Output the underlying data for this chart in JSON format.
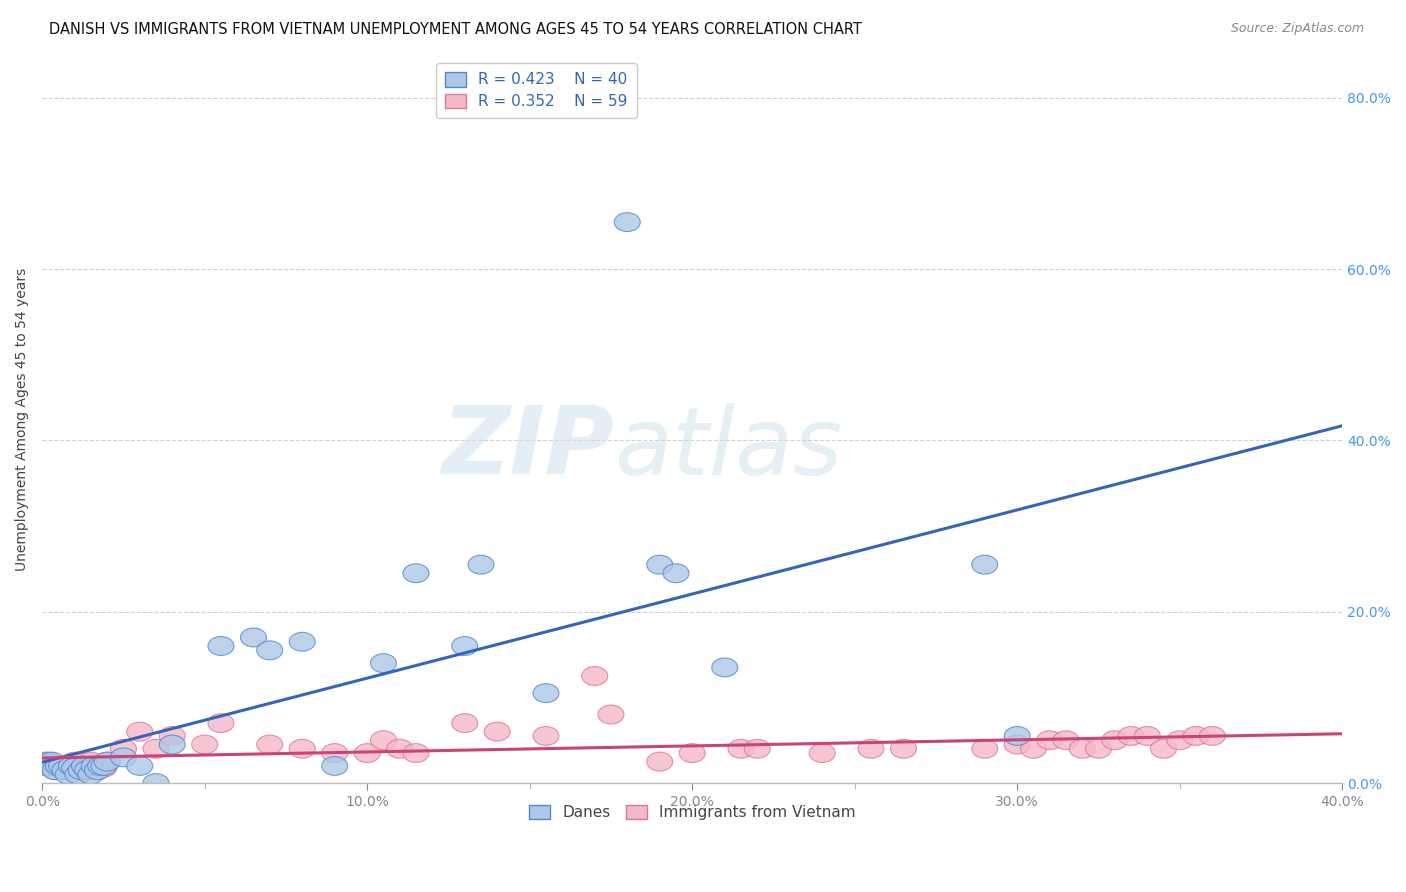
{
  "title": "DANISH VS IMMIGRANTS FROM VIETNAM UNEMPLOYMENT AMONG AGES 45 TO 54 YEARS CORRELATION CHART",
  "source": "Source: ZipAtlas.com",
  "ylabel": "Unemployment Among Ages 45 to 54 years",
  "xlim": [
    0.0,
    0.42
  ],
  "ylim": [
    -0.01,
    0.85
  ],
  "plot_xlim": [
    0.0,
    0.4
  ],
  "plot_ylim": [
    0.0,
    0.85
  ],
  "xtick_positions": [
    0.0,
    0.1,
    0.2,
    0.3,
    0.4
  ],
  "xtick_labels": [
    "0.0%",
    "10.0%",
    "20.0%",
    "30.0%",
    "40.0%"
  ],
  "ytick_positions": [
    0.0,
    0.2,
    0.4,
    0.6,
    0.8
  ],
  "ytick_labels": [
    "0.0%",
    "20.0%",
    "40.0%",
    "60.0%",
    "80.0%"
  ],
  "danes_color": "#adc8e8",
  "danes_edge_color": "#5588cc",
  "danes_line_color": "#3366bb",
  "vietnam_color": "#f5b8c8",
  "vietnam_edge_color": "#dd7799",
  "vietnam_line_color": "#cc4477",
  "danes_R": "0.423",
  "danes_N": "40",
  "vietnam_R": "0.352",
  "vietnam_N": "59",
  "watermark_zip": "ZIP",
  "watermark_atlas": "atlas",
  "background_color": "#ffffff",
  "grid_color": "#cccccc",
  "right_tick_color": "#4499ee",
  "danes_scatter_x": [
    0.001,
    0.002,
    0.003,
    0.004,
    0.005,
    0.006,
    0.007,
    0.008,
    0.009,
    0.01,
    0.011,
    0.012,
    0.013,
    0.014,
    0.015,
    0.016,
    0.017,
    0.018,
    0.019,
    0.02,
    0.025,
    0.03,
    0.035,
    0.04,
    0.055,
    0.065,
    0.07,
    0.08,
    0.09,
    0.105,
    0.115,
    0.13,
    0.135,
    0.155,
    0.18,
    0.19,
    0.195,
    0.21,
    0.29,
    0.3
  ],
  "danes_scatter_y": [
    0.025,
    0.02,
    0.025,
    0.015,
    0.02,
    0.02,
    0.015,
    0.01,
    0.02,
    0.018,
    0.01,
    0.015,
    0.02,
    0.015,
    0.01,
    0.02,
    0.015,
    0.02,
    0.02,
    0.025,
    0.03,
    0.02,
    0.0,
    0.045,
    0.16,
    0.17,
    0.155,
    0.165,
    0.02,
    0.14,
    0.245,
    0.16,
    0.255,
    0.105,
    0.655,
    0.255,
    0.245,
    0.135,
    0.255,
    0.055
  ],
  "vietnam_scatter_x": [
    0.001,
    0.002,
    0.003,
    0.004,
    0.005,
    0.006,
    0.007,
    0.008,
    0.009,
    0.01,
    0.011,
    0.012,
    0.013,
    0.014,
    0.015,
    0.016,
    0.017,
    0.018,
    0.019,
    0.02,
    0.025,
    0.03,
    0.035,
    0.04,
    0.05,
    0.055,
    0.07,
    0.08,
    0.09,
    0.1,
    0.105,
    0.11,
    0.115,
    0.13,
    0.14,
    0.155,
    0.17,
    0.175,
    0.19,
    0.2,
    0.215,
    0.22,
    0.24,
    0.255,
    0.265,
    0.29,
    0.3,
    0.305,
    0.31,
    0.315,
    0.32,
    0.325,
    0.33,
    0.335,
    0.34,
    0.345,
    0.35,
    0.355,
    0.36
  ],
  "vietnam_scatter_y": [
    0.02,
    0.025,
    0.02,
    0.015,
    0.02,
    0.02,
    0.015,
    0.02,
    0.018,
    0.025,
    0.02,
    0.018,
    0.015,
    0.02,
    0.025,
    0.02,
    0.015,
    0.02,
    0.018,
    0.025,
    0.04,
    0.06,
    0.04,
    0.055,
    0.045,
    0.07,
    0.045,
    0.04,
    0.035,
    0.035,
    0.05,
    0.04,
    0.035,
    0.07,
    0.06,
    0.055,
    0.125,
    0.08,
    0.025,
    0.035,
    0.04,
    0.04,
    0.035,
    0.04,
    0.04,
    0.04,
    0.045,
    0.04,
    0.05,
    0.05,
    0.04,
    0.04,
    0.05,
    0.055,
    0.055,
    0.04,
    0.05,
    0.055,
    0.055
  ]
}
